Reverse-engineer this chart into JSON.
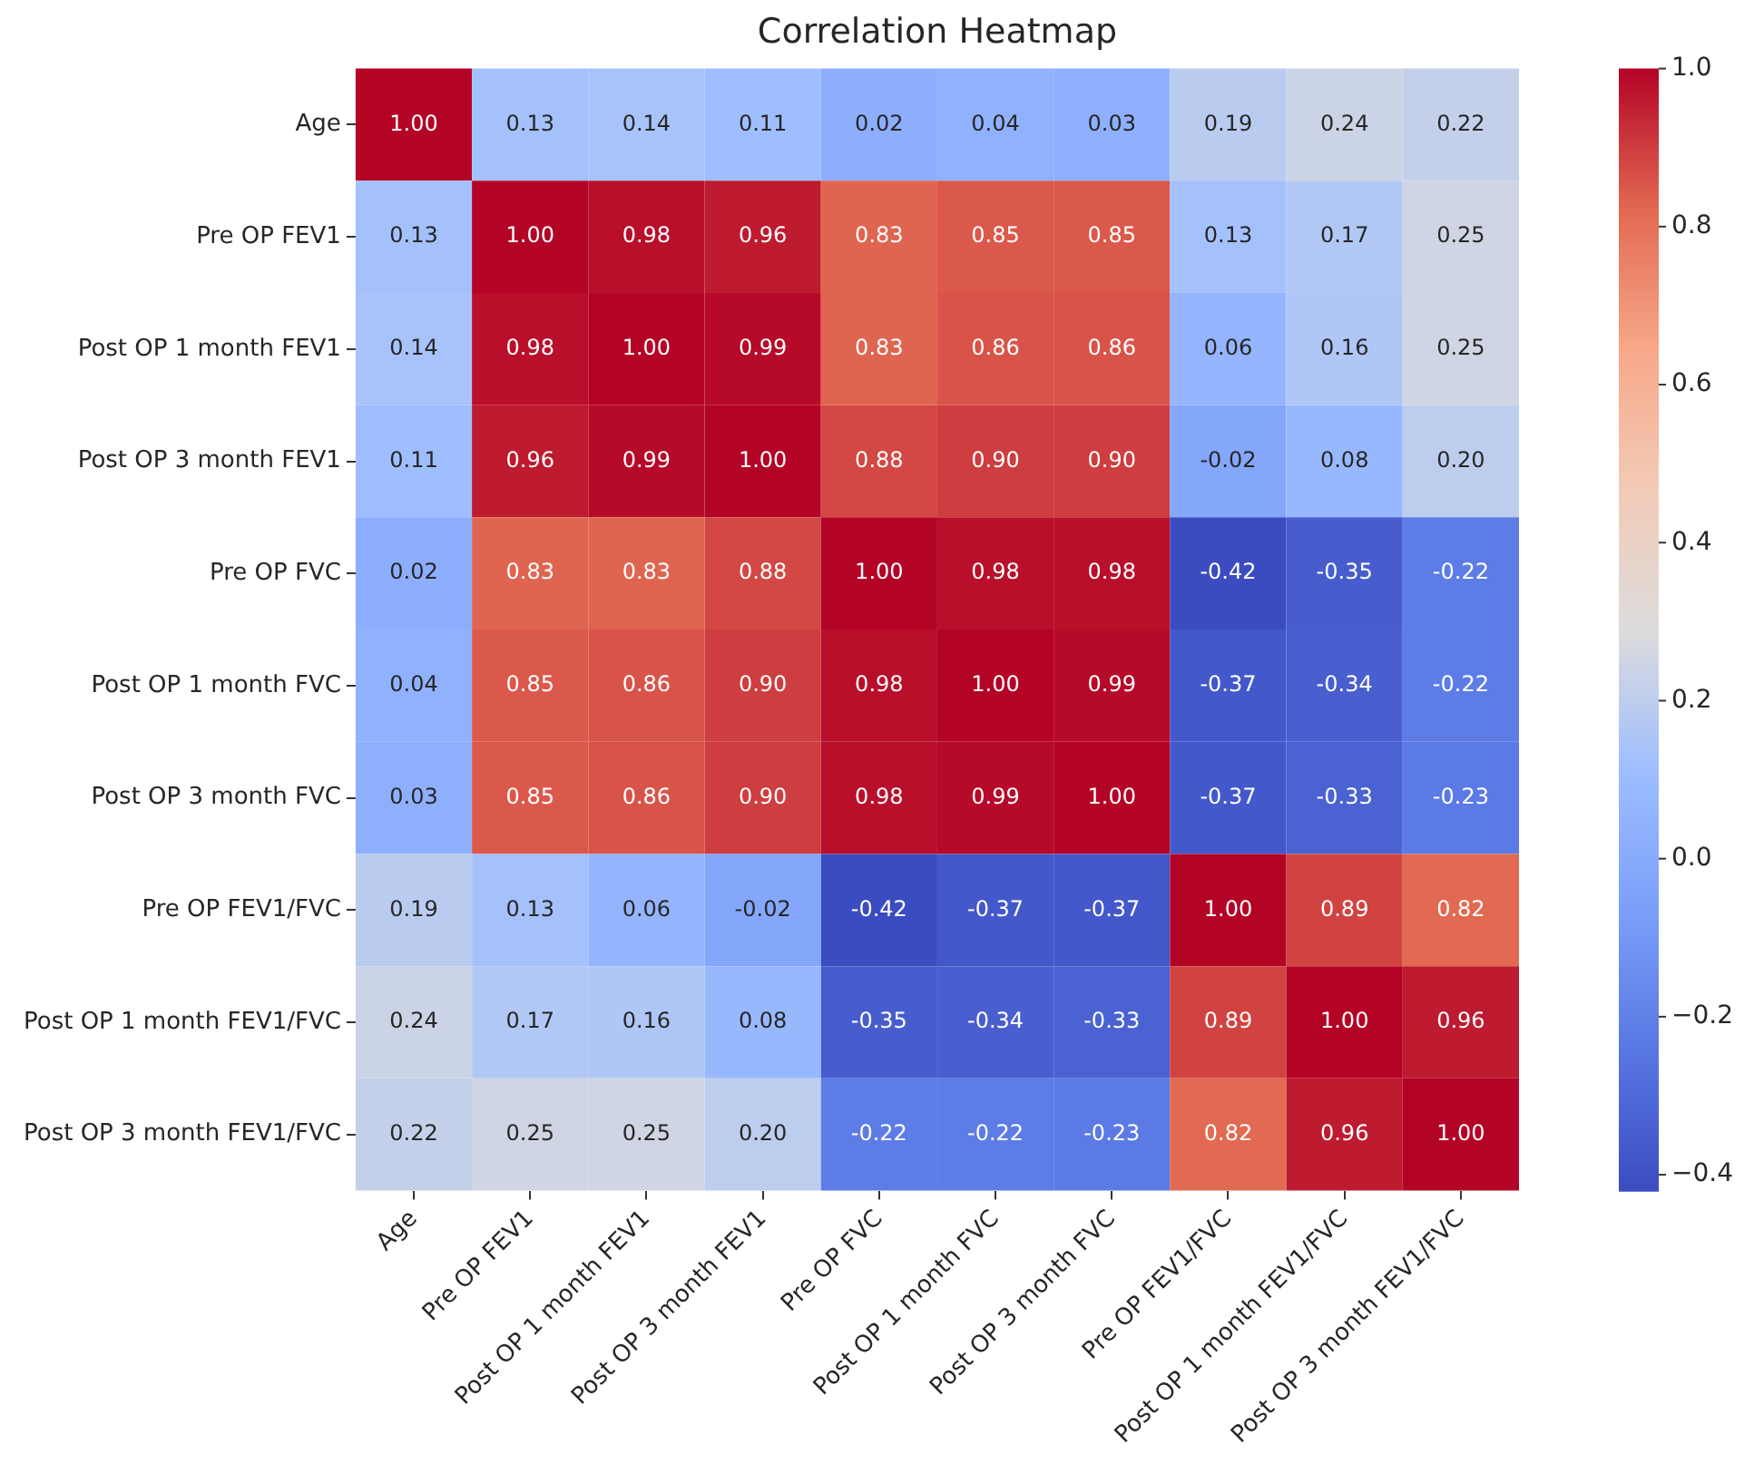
{
  "chart_data": {
    "type": "heatmap",
    "title": "Correlation Heatmap",
    "categories": [
      "Age",
      "Pre OP FEV1",
      "Post OP 1 month FEV1",
      "Post OP 3 month FEV1",
      "Pre OP FVC",
      "Post OP 1 month FVC",
      "Post OP 3 month FVC",
      "Pre OP FEV1/FVC",
      "Post OP 1 month FEV1/FVC",
      "Post OP 3 month FEV1/FVC"
    ],
    "y_categories": [
      "Age",
      "Pre OP FEV1",
      "Post OP 1 month FEV1",
      "Post OP 3 month FEV1",
      "Pre OP FVC",
      "Post OP 1 month FVC",
      "Post OP 3 month FVC",
      "Pre OP FEV1/FVC",
      "Post OP 1 month FEV1/FVC",
      "Post OP 3 month FEV1/FVC"
    ],
    "cells": [
      [
        1.0,
        0.13,
        0.14,
        0.11,
        0.02,
        0.04,
        0.03,
        0.19,
        0.24,
        0.22
      ],
      [
        0.13,
        1.0,
        0.98,
        0.96,
        0.83,
        0.85,
        0.85,
        0.13,
        0.17,
        0.25
      ],
      [
        0.14,
        0.98,
        1.0,
        0.99,
        0.83,
        0.86,
        0.86,
        0.06,
        0.16,
        0.25
      ],
      [
        0.11,
        0.96,
        0.99,
        1.0,
        0.88,
        0.9,
        0.9,
        -0.02,
        0.08,
        0.2
      ],
      [
        0.02,
        0.83,
        0.83,
        0.88,
        1.0,
        0.98,
        0.98,
        -0.42,
        -0.35,
        -0.22
      ],
      [
        0.04,
        0.85,
        0.86,
        0.9,
        0.98,
        1.0,
        0.99,
        -0.37,
        -0.34,
        -0.22
      ],
      [
        0.03,
        0.85,
        0.86,
        0.9,
        0.98,
        0.99,
        1.0,
        -0.37,
        -0.33,
        -0.23
      ],
      [
        0.19,
        0.13,
        0.06,
        -0.02,
        -0.42,
        -0.37,
        -0.37,
        1.0,
        0.89,
        0.82
      ],
      [
        0.24,
        0.17,
        0.16,
        0.08,
        -0.35,
        -0.34,
        -0.33,
        0.89,
        1.0,
        0.96
      ],
      [
        0.22,
        0.25,
        0.25,
        0.2,
        -0.22,
        -0.22,
        -0.23,
        0.82,
        0.96,
        1.0
      ]
    ],
    "cell_labels": [
      [
        "1.00",
        "0.13",
        "0.14",
        "0.11",
        "0.02",
        "0.04",
        "0.03",
        "0.19",
        "0.24",
        "0.22"
      ],
      [
        "0.13",
        "1.00",
        "0.98",
        "0.96",
        "0.83",
        "0.85",
        "0.85",
        "0.13",
        "0.17",
        "0.25"
      ],
      [
        "0.14",
        "0.98",
        "1.00",
        "0.99",
        "0.83",
        "0.86",
        "0.86",
        "0.06",
        "0.16",
        "0.25"
      ],
      [
        "0.11",
        "0.96",
        "0.99",
        "1.00",
        "0.88",
        "0.90",
        "0.90",
        "-0.02",
        "0.08",
        "0.20"
      ],
      [
        "0.02",
        "0.83",
        "0.83",
        "0.88",
        "1.00",
        "0.98",
        "0.98",
        "-0.42",
        "-0.35",
        "-0.22"
      ],
      [
        "0.04",
        "0.85",
        "0.86",
        "0.90",
        "0.98",
        "1.00",
        "0.99",
        "-0.37",
        "-0.34",
        "-0.22"
      ],
      [
        "0.03",
        "0.85",
        "0.86",
        "0.90",
        "0.98",
        "0.99",
        "1.00",
        "-0.37",
        "-0.33",
        "-0.23"
      ],
      [
        "0.19",
        "0.13",
        "0.06",
        "-0.02",
        "-0.42",
        "-0.37",
        "-0.37",
        "1.00",
        "0.89",
        "0.82"
      ],
      [
        "0.24",
        "0.17",
        "0.16",
        "0.08",
        "-0.35",
        "-0.34",
        "-0.33",
        "0.89",
        "1.00",
        "0.96"
      ],
      [
        "0.22",
        "0.25",
        "0.25",
        "0.20",
        "-0.22",
        "-0.22",
        "-0.23",
        "0.82",
        "0.96",
        "1.00"
      ]
    ],
    "clim": [
      -0.42,
      1.0
    ],
    "cticks": [
      {
        "value": -0.4,
        "label": "−0.4"
      },
      {
        "value": -0.2,
        "label": "−0.2"
      },
      {
        "value": 0,
        "label": "0.0"
      },
      {
        "value": 0.2,
        "label": "0.2"
      },
      {
        "value": 0.4,
        "label": "0.4"
      },
      {
        "value": 0.6,
        "label": "0.6"
      },
      {
        "value": 0.8,
        "label": "0.8"
      },
      {
        "value": 1.0,
        "label": "1.0"
      }
    ]
  }
}
